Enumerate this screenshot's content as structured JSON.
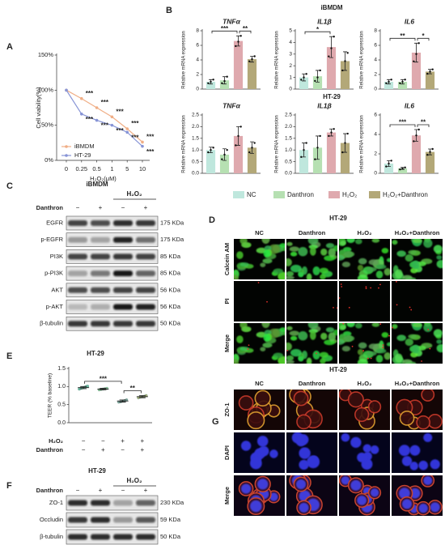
{
  "panel_labels": [
    "A",
    "B",
    "C",
    "D",
    "E",
    "F",
    "G"
  ],
  "chart_data": [
    {
      "type": "line",
      "xlabel": "H₂O₂(μM)",
      "ylabel": "Cell viability(%)",
      "categories": [
        "0",
        "0.25",
        "0.5",
        "1",
        "5",
        "10"
      ],
      "ylim": [
        0,
        150
      ],
      "yticks": [
        {
          "value": 0,
          "label": "0%"
        },
        {
          "value": 50,
          "label": "50%"
        },
        {
          "value": 100,
          "label": "100%"
        },
        {
          "value": 150,
          "label": "150%"
        }
      ],
      "series": [
        {
          "name": "iBMDM",
          "color": "#f0ae86",
          "values": [
            100,
            88,
            75,
            62,
            45,
            26
          ],
          "annotations": [
            null,
            "***",
            "***",
            "***",
            "***",
            "***"
          ]
        },
        {
          "name": "HT-29",
          "color": "#8794d6",
          "values": [
            100,
            66,
            57,
            50,
            40,
            20
          ],
          "annotations": [
            null,
            "***",
            "***",
            "***",
            "***",
            "***"
          ]
        }
      ]
    },
    {
      "type": "bar",
      "title": "TNFα",
      "ylabel": "Relative mRNA expression",
      "ylim": [
        0,
        8
      ],
      "yticks": [
        0,
        2,
        4,
        6,
        8
      ],
      "values": [
        1,
        1.2,
        6.6,
        4.1
      ],
      "errors": [
        0.3,
        0.5,
        0.7,
        0.4
      ],
      "points": [
        [
          0.8,
          1.0,
          1.3
        ],
        [
          0.8,
          1.1,
          1.7
        ],
        [
          5.9,
          6.5,
          7.3
        ],
        [
          3.8,
          4.1,
          4.5
        ]
      ],
      "brackets": [
        {
          "from": 0,
          "to": 2,
          "label": "***"
        },
        {
          "from": 2,
          "to": 3,
          "label": "**"
        }
      ]
    },
    {
      "type": "bar",
      "title": "IL1β",
      "ylabel": "Relative mRNA expression",
      "ylim": [
        0,
        5
      ],
      "yticks": [
        0,
        1,
        2,
        3,
        4,
        5
      ],
      "values": [
        1,
        1.1,
        3.6,
        2.4
      ],
      "errors": [
        0.3,
        0.5,
        0.9,
        0.8
      ],
      "points": [
        [
          0.8,
          1.0,
          1.3
        ],
        [
          0.7,
          1.0,
          1.6
        ],
        [
          2.8,
          3.5,
          4.5
        ],
        [
          1.6,
          2.4,
          3.1
        ]
      ],
      "brackets": [
        {
          "from": 0,
          "to": 2,
          "label": "*"
        }
      ]
    },
    {
      "type": "bar",
      "title": "IL6",
      "ylabel": "Relative mRNA expression",
      "ylim": [
        0,
        8
      ],
      "yticks": [
        0,
        2,
        4,
        6,
        8
      ],
      "values": [
        1,
        1,
        5,
        2.4
      ],
      "errors": [
        0.3,
        0.3,
        1.3,
        0.3
      ],
      "points": [
        [
          0.8,
          1.0,
          1.3
        ],
        [
          0.8,
          1.0,
          1.3
        ],
        [
          3.8,
          4.8,
          6.3
        ],
        [
          2.1,
          2.4,
          2.7
        ]
      ],
      "brackets": [
        {
          "from": 0,
          "to": 2,
          "label": "**"
        },
        {
          "from": 2,
          "to": 3,
          "label": "*"
        }
      ]
    },
    {
      "type": "bar",
      "title": "TNFα",
      "ylabel": "Relative mRNA expression",
      "ylim": [
        0,
        2.5
      ],
      "yticks": [
        {
          "value": 0,
          "label": "0.0"
        },
        0.5,
        {
          "value": 1,
          "label": "1.0"
        },
        1.5,
        {
          "value": 2,
          "label": "2.0"
        },
        2.5
      ],
      "values": [
        1,
        0.8,
        1.6,
        1.1
      ],
      "errors": [
        0.12,
        0.25,
        0.4,
        0.25
      ],
      "points": [
        [
          0.9,
          1.0,
          1.1
        ],
        [
          0.6,
          0.8,
          1.0
        ],
        [
          1.2,
          1.6,
          2.0
        ],
        [
          0.9,
          1.1,
          1.3
        ]
      ]
    },
    {
      "type": "bar",
      "title": "IL1β",
      "ylabel": "Relative mRNA expression",
      "ylim": [
        0,
        2.5
      ],
      "yticks": [
        {
          "value": 0,
          "label": "0.0"
        },
        0.5,
        {
          "value": 1,
          "label": "1.0"
        },
        1.5,
        {
          "value": 2,
          "label": "2.0"
        },
        2.5
      ],
      "values": [
        1,
        1.1,
        1.75,
        1.3
      ],
      "errors": [
        0.3,
        0.5,
        0.15,
        0.4
      ],
      "points": [
        [
          0.7,
          1.0,
          1.3
        ],
        [
          0.6,
          1.1,
          1.6
        ],
        [
          1.6,
          1.75,
          1.9
        ],
        [
          0.9,
          1.3,
          1.7
        ]
      ]
    },
    {
      "type": "bar",
      "title": "IL6",
      "ylabel": "Relative mRNA expression",
      "ylim": [
        0,
        6
      ],
      "yticks": [
        0,
        2,
        4,
        6
      ],
      "values": [
        1,
        0.5,
        3.9,
        2.2
      ],
      "errors": [
        0.3,
        0.1,
        0.6,
        0.3
      ],
      "points": [
        [
          0.7,
          1.0,
          1.3
        ],
        [
          0.4,
          0.5,
          0.6
        ],
        [
          3.3,
          3.9,
          4.5
        ],
        [
          1.9,
          2.2,
          2.5
        ]
      ],
      "brackets": [
        {
          "from": 0,
          "to": 2,
          "label": "***"
        },
        {
          "from": 2,
          "to": 3,
          "label": "**"
        }
      ]
    },
    {
      "type": "dot",
      "title": "HT-29",
      "ylabel": "TEER (% baseline)",
      "ylim": [
        0,
        1.5
      ],
      "yticks": [
        {
          "value": 0,
          "label": "0.0"
        },
        0.5,
        {
          "value": 1,
          "label": "1.0"
        },
        1.5
      ],
      "values": [
        0.97,
        0.93,
        0.6,
        0.72
      ],
      "errors": [
        0.03,
        0.02,
        0.03,
        0.03
      ],
      "points": [
        [
          0.93,
          0.95,
          0.96,
          0.97,
          0.98,
          1.0,
          1.01
        ],
        [
          0.91,
          0.92,
          0.93,
          0.94,
          0.95
        ],
        [
          0.57,
          0.58,
          0.6,
          0.61,
          0.63
        ],
        [
          0.69,
          0.71,
          0.72,
          0.73,
          0.75
        ]
      ],
      "colors": [
        "#6cbfa6",
        "#8dc79a",
        "#7fa8a0",
        "#a8b27a"
      ],
      "brackets": [
        {
          "from": 0,
          "to": 2,
          "label": "***"
        },
        {
          "from": 2,
          "to": 3,
          "label": "**"
        }
      ],
      "conditions": [
        {
          "name": "H₂O₂",
          "signs": [
            "−",
            "−",
            "+",
            "+"
          ]
        },
        {
          "name": "Danthron",
          "signs": [
            "−",
            "+",
            "−",
            "+"
          ]
        }
      ]
    }
  ],
  "panel_b": {
    "row_titles": [
      "iBMDM",
      "HT-29"
    ],
    "legend": [
      {
        "name": "NC",
        "color": "#bfe7dd"
      },
      {
        "name": "Danthron",
        "color": "#b6e0b2"
      },
      {
        "name": "H₂O₂",
        "color": "#dfa9ae"
      },
      {
        "name": "H₂O₂+Danthron",
        "color": "#b3a878"
      }
    ]
  },
  "blots": [
    {
      "title": "iBMDM",
      "treatment": "H₂O₂",
      "condition": "Danthron",
      "signs": [
        "−",
        "+",
        "−",
        "+"
      ],
      "rows": [
        {
          "name": "EGFR",
          "size": "175 KDa"
        },
        {
          "name": "p-EGFR",
          "size": "175 KDa"
        },
        {
          "name": "PI3K",
          "size": "85 KDa"
        },
        {
          "name": "p-PI3K",
          "size": "85 KDa"
        },
        {
          "name": "AKT",
          "size": "56 KDa"
        },
        {
          "name": "p-AKT",
          "size": "56 KDa"
        },
        {
          "name": "β-tubulin",
          "size": "50 KDa"
        }
      ]
    },
    {
      "title": "HT-29",
      "treatment": "H₂O₂",
      "condition": "Danthron",
      "signs": [
        "−",
        "+",
        "−",
        "+"
      ],
      "rows": [
        {
          "name": "ZO-1",
          "size": "230 KDa"
        },
        {
          "name": "Occludin",
          "size": "59 KDa"
        },
        {
          "name": "β-tubulin",
          "size": "50 KDa"
        }
      ]
    }
  ],
  "imaging": [
    {
      "title": "HT-29",
      "columns": [
        "NC",
        "Danthron",
        "H₂O₂",
        "H₂O₂+Danthron"
      ],
      "rows": [
        "Calcein AM",
        "PI",
        "Merge"
      ]
    },
    {
      "title": "HT-29",
      "columns": [
        "NC",
        "Danthron",
        "H₂O₂",
        "H₂O₂+Danthron"
      ],
      "rows": [
        "ZO-1",
        "DAPI",
        "Merge"
      ]
    }
  ]
}
